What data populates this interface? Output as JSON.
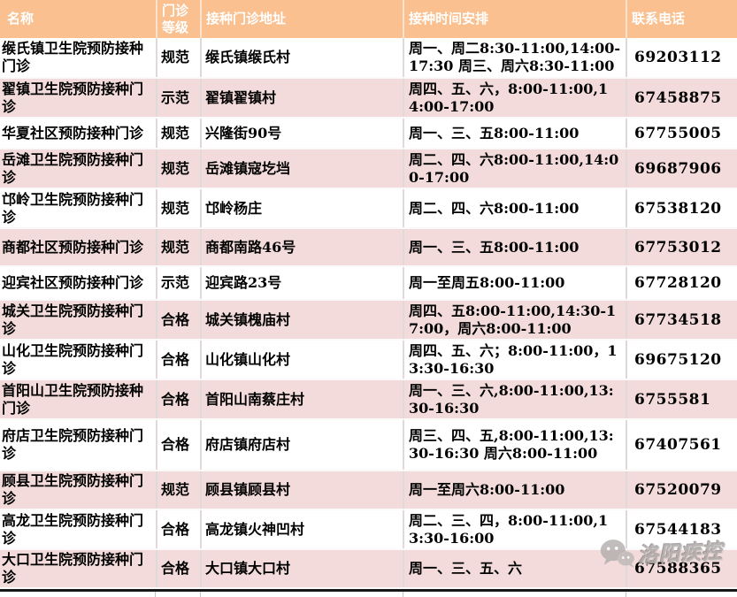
{
  "table": {
    "columns": [
      {
        "key": "name",
        "label": "名称"
      },
      {
        "key": "level",
        "label": "门诊等级"
      },
      {
        "key": "address",
        "label": "接种门诊地址"
      },
      {
        "key": "schedule",
        "label": "接种时间安排"
      },
      {
        "key": "phone",
        "label": "联系电话"
      }
    ],
    "rows": [
      {
        "name": "缑氏镇卫生院预防接种门诊",
        "level": "规范",
        "address": "缑氏镇缑氏村",
        "schedule": "周一、周二8:30-11:00,14:00-17:30  周三、周六8:30-11:00",
        "phone": "69203112"
      },
      {
        "name": "翟镇卫生院预防接种门诊",
        "level": "示范",
        "address": "翟镇翟镇村",
        "schedule": "周四、五、六，8:00-11:00,14:00-17:00",
        "phone": "67458875"
      },
      {
        "name": "华夏社区预防接种门诊",
        "level": "规范",
        "address": "兴隆街90号",
        "schedule": "周一、三、五8:00-11:00",
        "phone": "67755005"
      },
      {
        "name": "岳滩卫生院预防接种门诊",
        "level": "规范",
        "address": "岳滩镇寇圪垱",
        "schedule": "周二、四、六8:00-11:00,14:00-17:00",
        "phone": "69687906"
      },
      {
        "name": "邙岭卫生院预防接种门诊",
        "level": "规范",
        "address": "邙岭杨庄",
        "schedule": "周二、四、六8:00-11:00",
        "phone": "67538120"
      },
      {
        "name": "商都社区预防接种门诊",
        "level": "规范",
        "address": "商都南路46号",
        "schedule": "周一、三、五8:00-11:00",
        "phone": "67753012"
      },
      {
        "name": "迎宾社区预防接种门诊",
        "level": "示范",
        "address": "迎宾路23号",
        "schedule": "周一至周五8:00-11:00",
        "phone": "67728120"
      },
      {
        "name": "城关卫生院预防接种门诊",
        "level": "合格",
        "address": "城关镇槐庙村",
        "schedule": "周四、五8:00-11:00,14:30-17:00，周六8:00-11:00",
        "phone": "67734518"
      },
      {
        "name": "山化卫生院预防接种门诊",
        "level": "合格",
        "address": "山化镇山化村",
        "schedule": "周四、五、六；8:00-11:00，13:30-16:30",
        "phone": "69675120"
      },
      {
        "name": "首阳山卫生院预防接种门诊",
        "level": "合格",
        "address": "首阳山南蔡庄村",
        "schedule": "周一、三、六,8:00-11:00,13:30-16:30",
        "phone": "6755581"
      },
      {
        "name": "府店卫生院预防接种门诊",
        "level": "合格",
        "address": "府店镇府店村",
        "schedule": "周三、四、五,8:00-11:00,13:30-16:30 周六8:00-11:00",
        "phone": "67407561"
      },
      {
        "name": "顾县卫生院预防接种门诊",
        "level": "规范",
        "address": "顾县镇顾县村",
        "schedule": "周一至周六8:00-11:00",
        "phone": "67520079"
      },
      {
        "name": "高龙卫生院预防接种门诊",
        "level": "合格",
        "address": "高龙镇火神凹村",
        "schedule": "周二、三、四，8:00-11:00,13:30-16:00",
        "phone": "67544183"
      },
      {
        "name": "大口卫生院预防接种门诊",
        "level": "合格",
        "address": "大口镇大口村",
        "schedule": "周一、三、五、六",
        "phone": "67588365"
      }
    ]
  },
  "watermark": {
    "text": "洛阳疾控",
    "icon": "wechat-chat-bubbles-icon"
  },
  "colors": {
    "header_bg": "#FAC090",
    "header_text": "#FFFFFF",
    "row_bg": "#FFFFFF",
    "row_alt_bg": "#F2DBDA",
    "text": "#000000",
    "bottom_line": "#161616",
    "watermark": "#A8A4A3"
  }
}
